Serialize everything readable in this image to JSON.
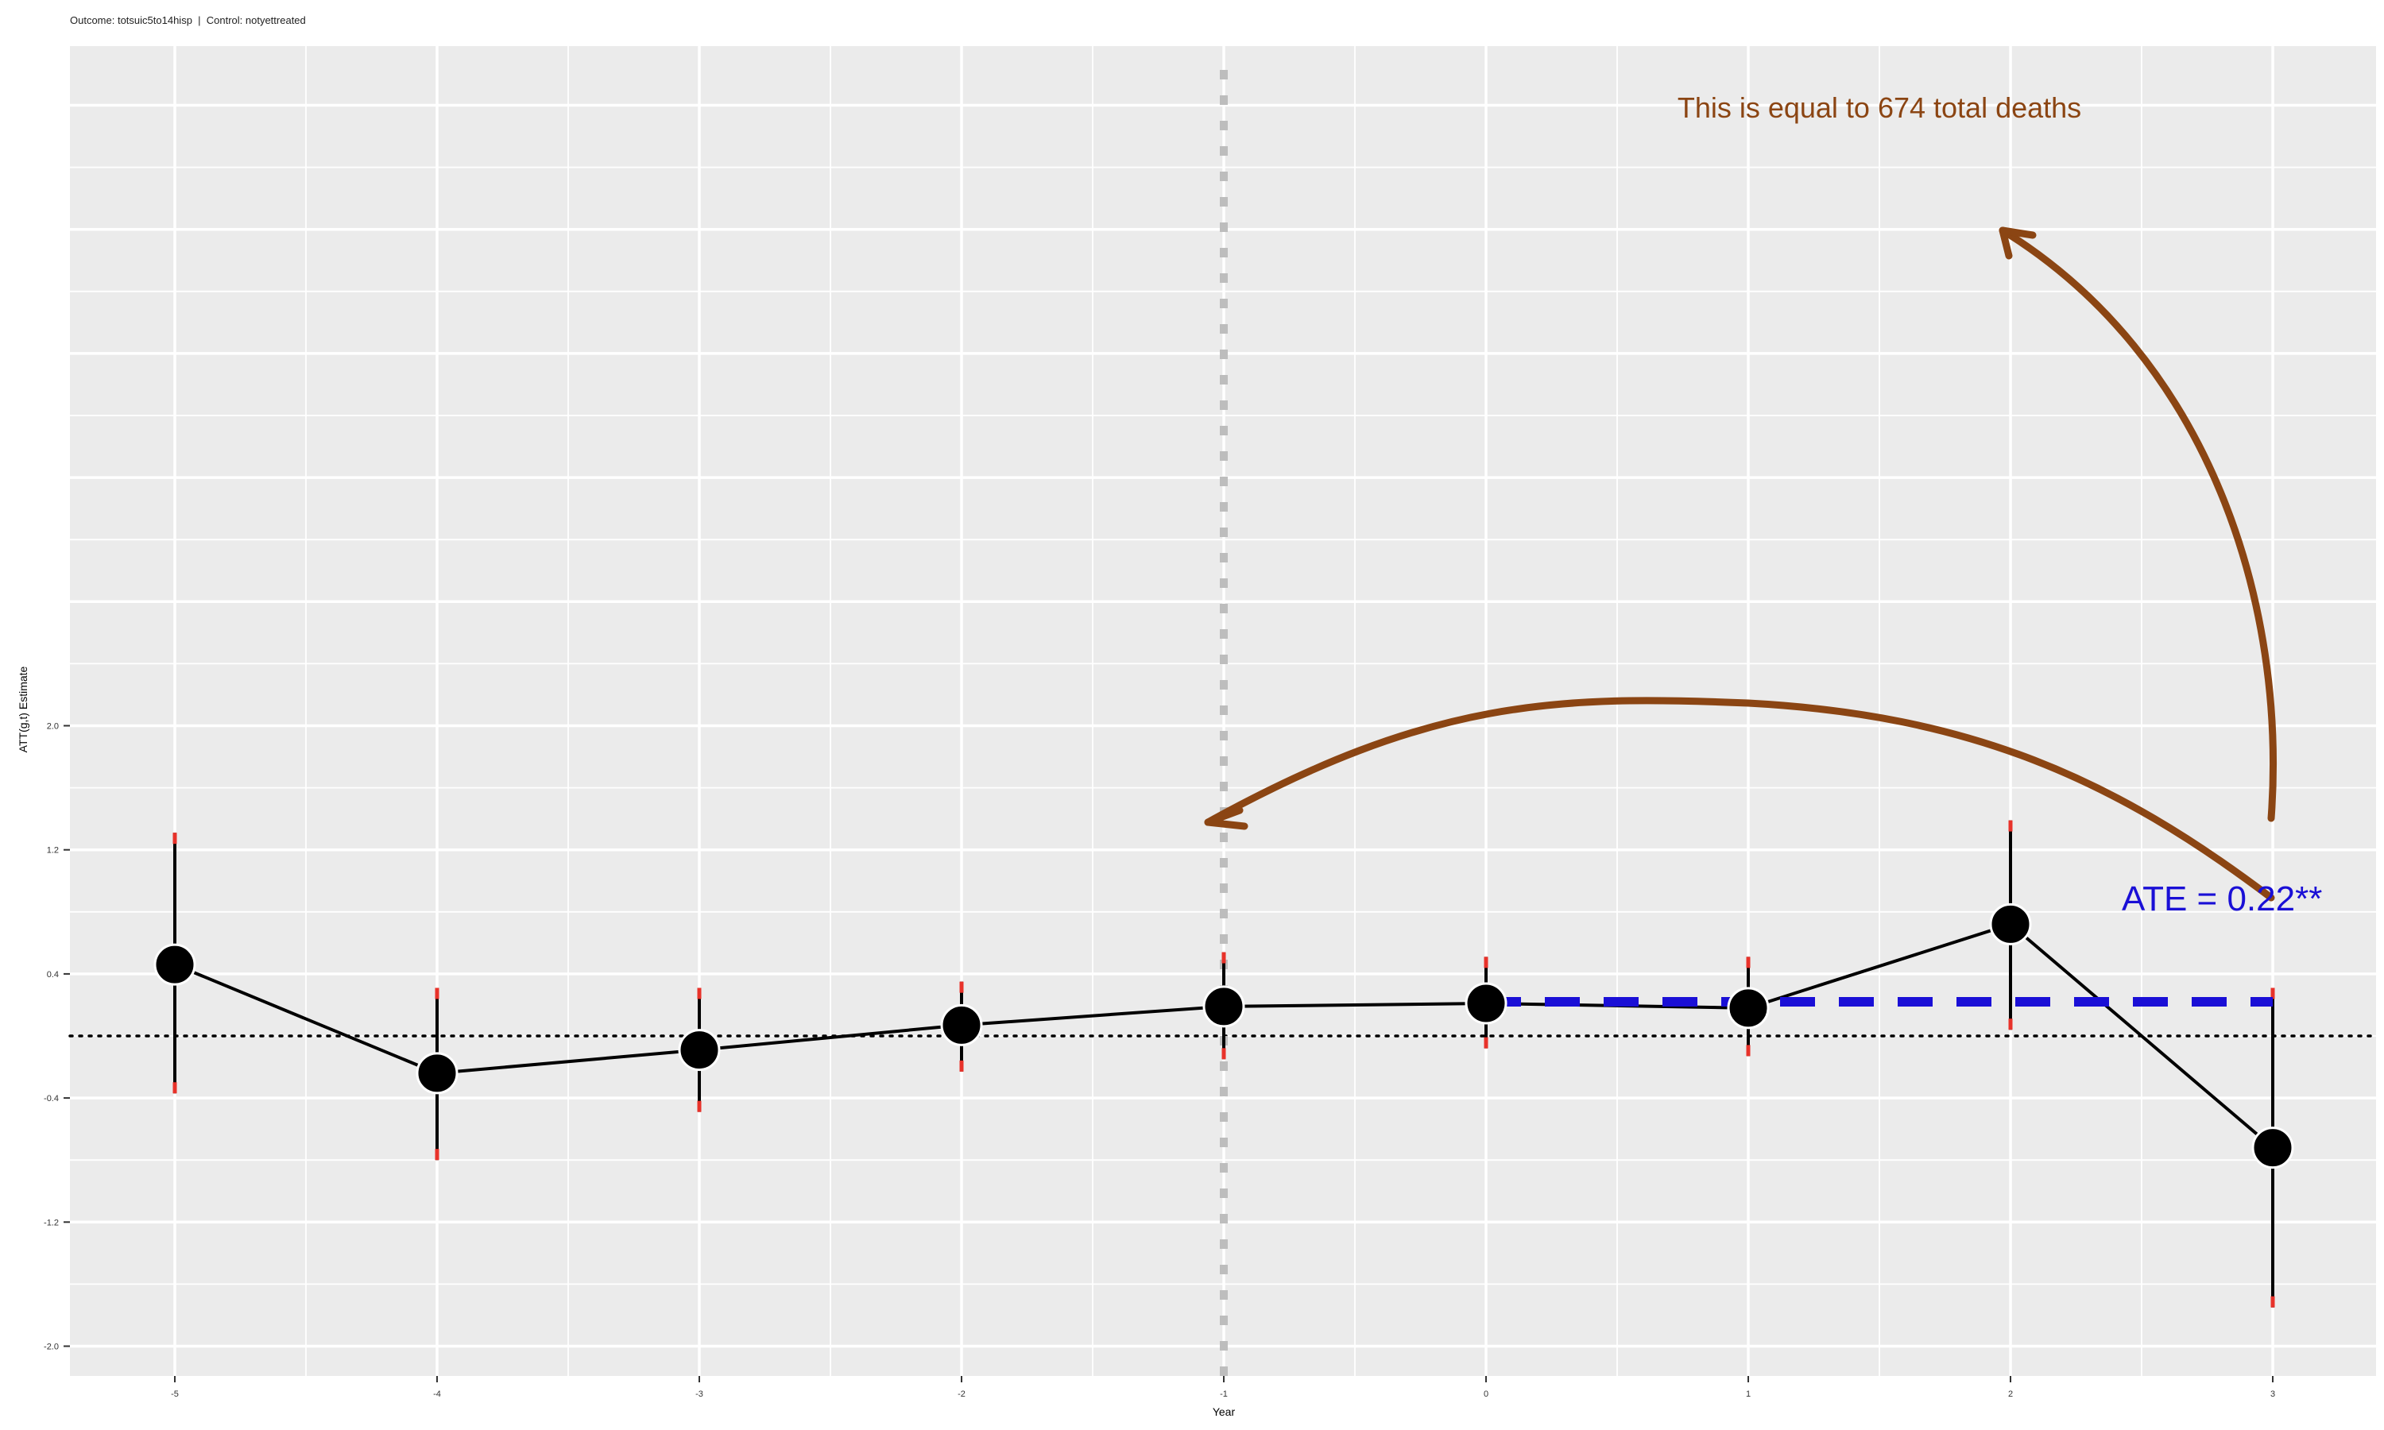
{
  "subtitle": "Outcome: totsuic5to14hisp  |  Control: notyettreated",
  "chart_data": {
    "type": "scatter",
    "title": "",
    "xlabel": "Year",
    "ylabel": "ATT(g,t) Estimate",
    "x_ticks": [
      -5,
      -4,
      -3,
      -2,
      -1,
      0,
      1,
      2,
      3
    ],
    "y_ticks": [
      2.0,
      1.2,
      0.4,
      -0.4,
      -1.2,
      -2.0
    ],
    "y_tick_labels": [
      "2.0",
      "1.2",
      "0.4",
      "-0.4",
      "-1.2",
      "-2.0"
    ],
    "xlim": [
      -5.4,
      3.4
    ],
    "ylim": [
      -2.17,
      6.4
    ],
    "grid": true,
    "points": [
      {
        "x": -5,
        "y": 0.46,
        "ci_low": -0.37,
        "ci_high": 1.31
      },
      {
        "x": -4,
        "y": -0.24,
        "ci_low": -0.8,
        "ci_high": 0.31
      },
      {
        "x": -3,
        "y": -0.09,
        "ci_low": -0.49,
        "ci_high": 0.31
      },
      {
        "x": -2,
        "y": 0.07,
        "ci_low": -0.23,
        "ci_high": 0.35
      },
      {
        "x": -1,
        "y": 0.19,
        "ci_low": -0.15,
        "ci_high": 0.54
      },
      {
        "x": 0,
        "y": 0.21,
        "ci_low": -0.08,
        "ci_high": 0.51
      },
      {
        "x": 1,
        "y": 0.18,
        "ci_low": -0.13,
        "ci_high": 0.51
      },
      {
        "x": 2,
        "y": 0.72,
        "ci_low": 0.04,
        "ci_high": 1.39
      },
      {
        "x": 3,
        "y": -0.72,
        "ci_low": -1.75,
        "ci_high": 0.31
      }
    ],
    "ate": {
      "value": 0.22,
      "x_start": 0,
      "x_end": 3,
      "label": "ATE = 0.22**"
    },
    "reference_lines": {
      "zero_y": 0,
      "vertical_x": -1
    },
    "annotation_text": "This is equal to 674 total deaths",
    "colors": {
      "panel": "#EBEBEB",
      "grid": "#FFFFFF",
      "point": "#000000",
      "ci_cap": "#E8322A",
      "ate_line": "#1a0fd6",
      "vline": "#BDBDBD",
      "arrow": "#8B4513",
      "annotation_text": "#8B4513"
    }
  }
}
